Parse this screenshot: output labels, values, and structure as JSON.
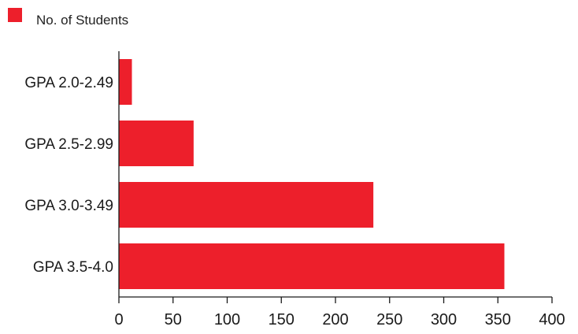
{
  "colors": {
    "bar": "#ed1f2b",
    "axis": "#1a1a1a"
  },
  "chart_data": {
    "type": "bar",
    "orientation": "horizontal",
    "categories": [
      "GPA 2.0-2.49",
      "GPA 2.5-2.99",
      "GPA 3.0-3.49",
      "GPA 3.5-4.0"
    ],
    "series": [
      {
        "name": "No. of Students",
        "values": [
          12,
          69,
          235,
          356
        ]
      }
    ],
    "xlim": [
      0,
      400
    ],
    "xticks": [
      0,
      50,
      100,
      150,
      200,
      250,
      300,
      350,
      400
    ],
    "title": "",
    "xlabel": "",
    "ylabel": "",
    "grid": false,
    "legend_position": "top-left"
  }
}
